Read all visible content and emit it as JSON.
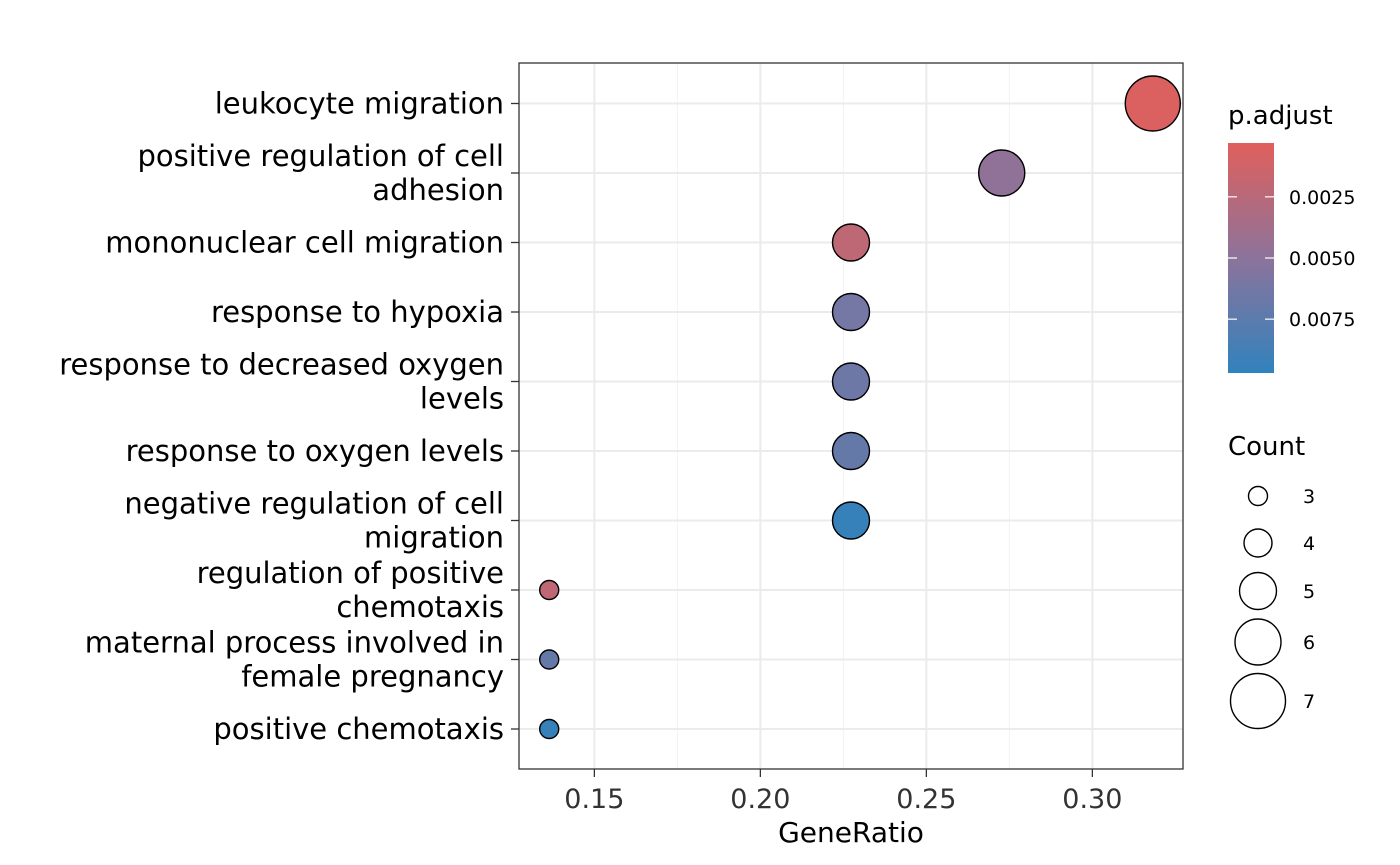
{
  "chart_data": {
    "type": "scatter",
    "title": "",
    "xlabel": "GeneRatio",
    "ylabel": "",
    "xlim": [
      0.1273,
      0.3273
    ],
    "xticks": [
      0.15,
      0.2,
      0.25,
      0.3
    ],
    "xtick_labels": [
      "0.15",
      "0.20",
      "0.25",
      "0.30"
    ],
    "grid": true,
    "categories": [
      [
        "leukocyte migration"
      ],
      [
        "positive regulation of cell",
        "adhesion"
      ],
      [
        "mononuclear cell migration"
      ],
      [
        "response to hypoxia"
      ],
      [
        "response to decreased oxygen",
        "levels"
      ],
      [
        "response to oxygen levels"
      ],
      [
        "negative regulation of cell",
        "migration"
      ],
      [
        "regulation of positive",
        "chemotaxis"
      ],
      [
        "maternal process involved in",
        "female pregnancy"
      ],
      [
        "positive chemotaxis"
      ]
    ],
    "points": [
      {
        "gene_ratio": 0.3182,
        "count": 7,
        "p_adjust": 0.0006
      },
      {
        "gene_ratio": 0.2727,
        "count": 6,
        "p_adjust": 0.0048
      },
      {
        "gene_ratio": 0.2273,
        "count": 5,
        "p_adjust": 0.0022
      },
      {
        "gene_ratio": 0.2273,
        "count": 5,
        "p_adjust": 0.0062
      },
      {
        "gene_ratio": 0.2273,
        "count": 5,
        "p_adjust": 0.0066
      },
      {
        "gene_ratio": 0.2273,
        "count": 5,
        "p_adjust": 0.007
      },
      {
        "gene_ratio": 0.2273,
        "count": 5,
        "p_adjust": 0.0094
      },
      {
        "gene_ratio": 0.1364,
        "count": 3,
        "p_adjust": 0.0022
      },
      {
        "gene_ratio": 0.1364,
        "count": 3,
        "p_adjust": 0.007
      },
      {
        "gene_ratio": 0.1364,
        "count": 3,
        "p_adjust": 0.0094
      }
    ],
    "color_legend": {
      "title": "p.adjust",
      "range": [
        0.0003,
        0.0097
      ],
      "ticks": [
        0.0025,
        0.005,
        0.0075
      ],
      "tick_labels": [
        "0.0025",
        "0.0050",
        "0.0075"
      ],
      "low_color": "#E0605C",
      "high_color": "#3182BD"
    },
    "size_legend": {
      "title": "Count",
      "values": [
        3,
        4,
        5,
        6,
        7
      ],
      "labels": [
        "3",
        "4",
        "5",
        "6",
        "7"
      ]
    }
  }
}
